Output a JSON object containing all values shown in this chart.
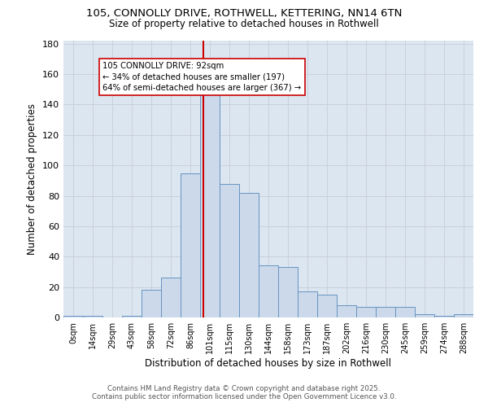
{
  "title_line1": "105, CONNOLLY DRIVE, ROTHWELL, KETTERING, NN14 6TN",
  "title_line2": "Size of property relative to detached houses in Rothwell",
  "xlabel": "Distribution of detached houses by size in Rothwell",
  "ylabel": "Number of detached properties",
  "bar_labels": [
    "0sqm",
    "14sqm",
    "29sqm",
    "43sqm",
    "58sqm",
    "72sqm",
    "86sqm",
    "101sqm",
    "115sqm",
    "130sqm",
    "144sqm",
    "158sqm",
    "173sqm",
    "187sqm",
    "202sqm",
    "216sqm",
    "230sqm",
    "245sqm",
    "259sqm",
    "274sqm",
    "288sqm"
  ],
  "bar_heights": [
    1,
    1,
    0,
    1,
    18,
    26,
    95,
    150,
    88,
    82,
    34,
    33,
    17,
    15,
    8,
    7,
    7,
    7,
    2,
    1,
    2
  ],
  "bar_color": "#ccd9ea",
  "bar_edge_color": "#6694c2",
  "property_line_x": 6.68,
  "annotation_text": "105 CONNOLLY DRIVE: 92sqm\n← 34% of detached houses are smaller (197)\n64% of semi-detached houses are larger (367) →",
  "annotation_box_color": "#ffffff",
  "annotation_box_edge": "#cc0000",
  "vline_color": "#cc0000",
  "ylim": [
    0,
    182
  ],
  "yticks": [
    0,
    20,
    40,
    60,
    80,
    100,
    120,
    140,
    160,
    180
  ],
  "grid_color": "#c8d0dc",
  "bg_color": "#dce6f0",
  "footer_line1": "Contains HM Land Registry data © Crown copyright and database right 2025.",
  "footer_line2": "Contains public sector information licensed under the Open Government Licence v3.0."
}
